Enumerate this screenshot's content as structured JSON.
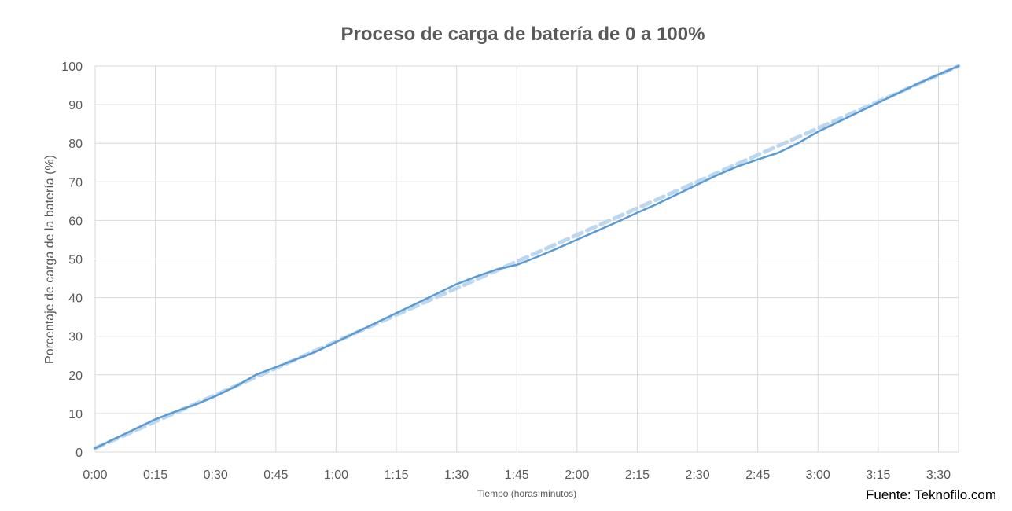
{
  "chart_data": {
    "type": "line",
    "title": "Proceso de carga de batería de 0 a 100%",
    "xlabel": "Tiempo (horas:minutos)",
    "ylabel": "Porcentaje de carga de la batería (%)",
    "source": "Fuente: Teknofilo.com",
    "x_tick_labels": [
      "0:00",
      "0:15",
      "0:30",
      "0:45",
      "1:00",
      "1:15",
      "1:30",
      "1:45",
      "2:00",
      "2:15",
      "2:30",
      "2:45",
      "3:00",
      "3:15",
      "3:30"
    ],
    "y_tick_labels": [
      "0",
      "10",
      "20",
      "30",
      "40",
      "50",
      "60",
      "70",
      "80",
      "90",
      "100"
    ],
    "xlim_minutes": [
      0,
      215
    ],
    "ylim": [
      0,
      100
    ],
    "grid": true,
    "series": [
      {
        "style": "solid",
        "color": "#5b9bd5",
        "points": [
          [
            0,
            1
          ],
          [
            5,
            3.5
          ],
          [
            10,
            6
          ],
          [
            15,
            8.5
          ],
          [
            20,
            10.5
          ],
          [
            25,
            12.3
          ],
          [
            30,
            14.5
          ],
          [
            35,
            17
          ],
          [
            40,
            20
          ],
          [
            45,
            22
          ],
          [
            50,
            24
          ],
          [
            55,
            26
          ],
          [
            60,
            28.5
          ],
          [
            65,
            31
          ],
          [
            70,
            33.5
          ],
          [
            75,
            36
          ],
          [
            80,
            38.5
          ],
          [
            85,
            41
          ],
          [
            90,
            43.5
          ],
          [
            95,
            45.5
          ],
          [
            100,
            47.3
          ],
          [
            105,
            48.5
          ],
          [
            110,
            50.5
          ],
          [
            115,
            52.7
          ],
          [
            120,
            55
          ],
          [
            125,
            57.3
          ],
          [
            130,
            59.6
          ],
          [
            135,
            62
          ],
          [
            140,
            64.3
          ],
          [
            145,
            66.8
          ],
          [
            150,
            69.3
          ],
          [
            155,
            71.8
          ],
          [
            160,
            74
          ],
          [
            165,
            75.8
          ],
          [
            170,
            77.5
          ],
          [
            175,
            80
          ],
          [
            180,
            83
          ],
          [
            185,
            85.5
          ],
          [
            190,
            88
          ],
          [
            195,
            90.5
          ],
          [
            200,
            93
          ],
          [
            205,
            95.5
          ],
          [
            210,
            97.8
          ],
          [
            215,
            100
          ]
        ]
      },
      {
        "style": "dashed",
        "color": "#bdd7ee",
        "points": [
          [
            0,
            1
          ],
          [
            215,
            100
          ]
        ]
      }
    ]
  }
}
